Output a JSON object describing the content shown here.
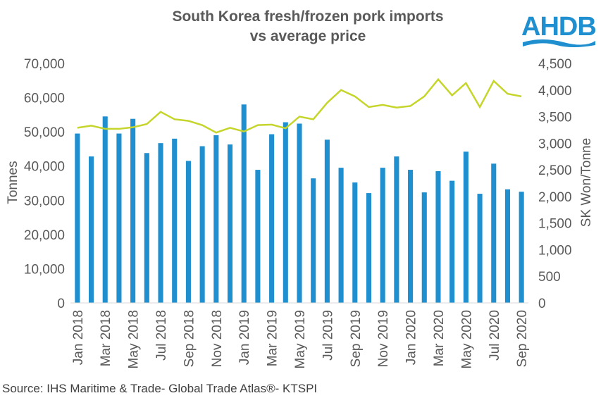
{
  "logo": {
    "text": "AHDB",
    "color": "#1f8fd0"
  },
  "source": "Source: IHS Maritime & Trade- Global Trade Atlas®- KTSPI",
  "chart_data": {
    "type": "bar",
    "title": "South Korea fresh/frozen pork imports vs average price",
    "title_lines": [
      "South Korea fresh/frozen pork imports",
      "vs average price"
    ],
    "ylabel": "Tonnes",
    "y2label": "SK Won/Tonne",
    "ylim": [
      0,
      70000
    ],
    "y2lim": [
      0,
      4500
    ],
    "yticks": [
      "0",
      "10,000",
      "20,000",
      "30,000",
      "40,000",
      "50,000",
      "60,000",
      "70,000"
    ],
    "y2ticks": [
      "0",
      "500",
      "1,000",
      "1,500",
      "2,000",
      "2,500",
      "3,000",
      "3,500",
      "4,000",
      "4,500"
    ],
    "grid": false,
    "categories": [
      "Jan 2018",
      "Feb 2018",
      "Mar 2018",
      "Apr 2018",
      "May 2018",
      "Jun 2018",
      "Jul 2018",
      "Aug 2018",
      "Sep 2018",
      "Oct 2018",
      "Nov 2018",
      "Dec 2018",
      "Jan 2019",
      "Feb 2019",
      "Mar 2019",
      "Apr 2019",
      "May 2019",
      "Jun 2019",
      "Jul 2019",
      "Aug 2019",
      "Sep 2019",
      "Oct 2019",
      "Nov 2019",
      "Dec 2019",
      "Jan 2020",
      "Feb 2020",
      "Mar 2020",
      "Apr 2020",
      "May 2020",
      "Jun 2020",
      "Jul 2020",
      "Aug 2020",
      "Sep 2020"
    ],
    "xtick_labels": [
      "Jan 2018",
      "",
      "Mar 2018",
      "",
      "May 2018",
      "",
      "Jul 2018",
      "",
      "Sep 2018",
      "",
      "Nov 2018",
      "",
      "Jan 2019",
      "",
      "Mar 2019",
      "",
      "May 2019",
      "",
      "Jul 2019",
      "",
      "Sep 2019",
      "",
      "Nov 2019",
      "",
      "Jan 2020",
      "",
      "Mar 2020",
      "",
      "May 2020",
      "",
      "Jul 2020",
      "",
      "Sep 2020"
    ],
    "series": [
      {
        "type": "bar",
        "axis": "left",
        "color": "#1f8fd0",
        "values": [
          49500,
          42800,
          54500,
          49500,
          53800,
          43800,
          46700,
          48000,
          41500,
          45800,
          49000,
          46300,
          58000,
          38900,
          49300,
          52800,
          52400,
          36400,
          47700,
          39500,
          35200,
          32100,
          39500,
          42800,
          38900,
          32300,
          38500,
          35700,
          44200,
          31900,
          40700,
          33200,
          32500
        ]
      },
      {
        "type": "line",
        "axis": "right",
        "color": "#c5d52b",
        "values": [
          3290,
          3330,
          3270,
          3270,
          3300,
          3360,
          3590,
          3450,
          3420,
          3340,
          3200,
          3290,
          3220,
          3340,
          3350,
          3280,
          3500,
          3450,
          3760,
          4000,
          3880,
          3680,
          3720,
          3670,
          3700,
          3880,
          4200,
          3900,
          4130,
          3680,
          4170,
          3930,
          3880
        ]
      }
    ]
  }
}
